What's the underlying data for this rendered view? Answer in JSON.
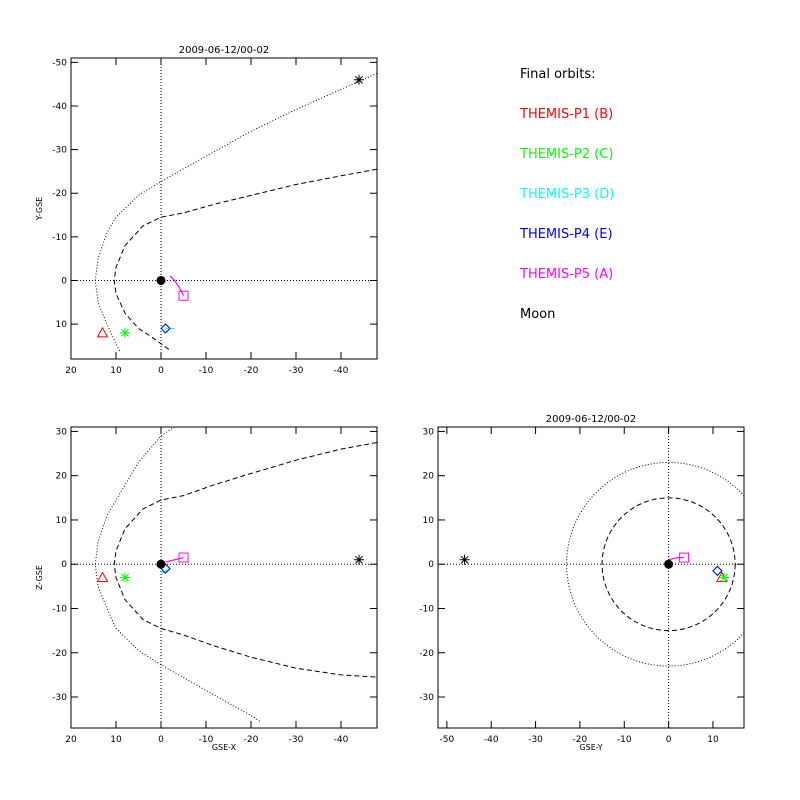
{
  "legend": {
    "title": "Final orbits:",
    "items": [
      {
        "label": "THEMIS-P1 (B)",
        "color": "#ff0000"
      },
      {
        "label": "THEMIS-P2 (C)",
        "color": "#00ff00"
      },
      {
        "label": "THEMIS-P3 (D)",
        "color": "#00ffff"
      },
      {
        "label": "THEMIS-P4 (E)",
        "color": "#0000ff"
      },
      {
        "label": "THEMIS-P5 (A)",
        "color": "#ff00ff"
      },
      {
        "label": "Moon",
        "color": "#000000"
      }
    ]
  },
  "chart_data": [
    {
      "type": "scatter",
      "title": "2009-06-12/00-02",
      "xlabel": "",
      "ylabel": "Y-GSE",
      "xlim": [
        20,
        -48
      ],
      "ylim": [
        18,
        -51
      ],
      "xticks": [
        20,
        10,
        0,
        -10,
        -20,
        -30,
        -40
      ],
      "yticks": [
        -50,
        -40,
        -30,
        -20,
        -10,
        0,
        10
      ],
      "grid": false,
      "reference_lines": {
        "x": 0,
        "y": 0
      },
      "curves": [
        {
          "name": "",
          "style": "dotted",
          "points": [
            [
              -48,
              -47.5
            ],
            [
              -44,
              -45.6
            ],
            [
              -40,
              -43.8
            ],
            [
              -30,
              -39.2
            ],
            [
              -20,
              -34.2
            ],
            [
              -10,
              -28.5
            ],
            [
              0,
              -22.7
            ],
            [
              5,
              -19.5
            ],
            [
              10,
              -14.5
            ],
            [
              12,
              -11
            ],
            [
              14,
              -5
            ],
            [
              14.6,
              0
            ],
            [
              14,
              5
            ],
            [
              12,
              10
            ],
            [
              10,
              14.5
            ],
            [
              9,
              16.5
            ]
          ]
        },
        {
          "name": "",
          "style": "dashed",
          "points": [
            [
              -48,
              -25.5
            ],
            [
              -40,
              -24
            ],
            [
              -30,
              -22
            ],
            [
              -20,
              -19.5
            ],
            [
              -12,
              -17.5
            ],
            [
              -5,
              -15.5
            ],
            [
              0,
              -14.5
            ],
            [
              4,
              -12.5
            ],
            [
              8,
              -8
            ],
            [
              10,
              -3
            ],
            [
              10.4,
              0
            ],
            [
              10,
              3
            ],
            [
              8,
              7.5
            ],
            [
              5,
              11
            ],
            [
              2,
              13
            ],
            [
              0,
              14.5
            ],
            [
              -2,
              16
            ]
          ]
        }
      ],
      "markers": [
        {
          "name": "Moon",
          "symbol": "asterisk",
          "color": "#000000",
          "x": -44,
          "y": -46
        },
        {
          "name": "THEMIS-P1 (B)",
          "symbol": "triangle",
          "color": "#ff0000",
          "x": 13,
          "y": 12
        },
        {
          "name": "THEMIS-P2 (C)",
          "symbol": "asterisk",
          "color": "#00ff00",
          "x": 8,
          "y": 12
        },
        {
          "name": "THEMIS-P3 (D)",
          "symbol": "diamond",
          "color": "#00ffff",
          "x": -1,
          "y": 11
        },
        {
          "name": "THEMIS-P4 (E)",
          "symbol": "diamond",
          "color": "#0000ff",
          "x": -1,
          "y": 11
        },
        {
          "name": "THEMIS-P5 (A)",
          "symbol": "square",
          "color": "#ff00ff",
          "x": -5,
          "y": 3.5
        },
        {
          "name": "Earth",
          "symbol": "dot",
          "color": "#000000",
          "x": 0,
          "y": 0
        }
      ],
      "tracks": [
        {
          "name": "THEMIS-P5 (A)",
          "color": "#ff00ff",
          "points": [
            [
              -2,
              -1
            ],
            [
              -3,
              0
            ],
            [
              -4,
              1.5
            ],
            [
              -5,
              3.5
            ]
          ]
        },
        {
          "name": "THEMIS-P3 (D)",
          "color": "#00ffff",
          "points": [
            [
              -1,
              11
            ],
            [
              -2,
              11
            ],
            [
              -3,
              11
            ]
          ]
        }
      ]
    },
    {
      "type": "scatter",
      "title": "",
      "xlabel": "GSE-X",
      "ylabel": "Z-GSE",
      "xlim": [
        20,
        -48
      ],
      "ylim": [
        -37,
        31
      ],
      "xticks": [
        20,
        10,
        0,
        -10,
        -20,
        -30,
        -40
      ],
      "yticks": [
        -30,
        -20,
        -10,
        0,
        10,
        20,
        30
      ],
      "grid": false,
      "reference_lines": {
        "x": 0,
        "y": 0
      },
      "curves": [
        {
          "name": "",
          "style": "dotted",
          "points": [
            [
              -3,
              31
            ],
            [
              0,
              29
            ],
            [
              5,
              23
            ],
            [
              10,
              14.5
            ],
            [
              12,
              11
            ],
            [
              14,
              5
            ],
            [
              14.6,
              0
            ],
            [
              14,
              -5
            ],
            [
              12,
              -10
            ],
            [
              10,
              -14.5
            ],
            [
              5,
              -19.5
            ],
            [
              0,
              -22.7
            ],
            [
              -10,
              -28.5
            ],
            [
              -20,
              -34.2
            ],
            [
              -22,
              -35.5
            ]
          ]
        },
        {
          "name": "",
          "style": "dashed",
          "points": [
            [
              -48,
              27.5
            ],
            [
              -40,
              26
            ],
            [
              -30,
              23.5
            ],
            [
              -20,
              20.5
            ],
            [
              -12,
              18
            ],
            [
              -5,
              15.5
            ],
            [
              0,
              14.5
            ],
            [
              4,
              12.5
            ],
            [
              8,
              8
            ],
            [
              10,
              3
            ],
            [
              10.4,
              0
            ],
            [
              10,
              -3
            ],
            [
              8,
              -8
            ],
            [
              4,
              -12.5
            ],
            [
              0,
              -14.5
            ],
            [
              -5,
              -16
            ],
            [
              -12,
              -18.5
            ],
            [
              -20,
              -21
            ],
            [
              -30,
              -23.5
            ],
            [
              -40,
              -25
            ],
            [
              -48,
              -25.5
            ]
          ]
        }
      ],
      "markers": [
        {
          "name": "Moon",
          "symbol": "asterisk",
          "color": "#000000",
          "x": -44,
          "y": 1
        },
        {
          "name": "THEMIS-P1 (B)",
          "symbol": "triangle",
          "color": "#ff0000",
          "x": 13,
          "y": -3
        },
        {
          "name": "THEMIS-P2 (C)",
          "symbol": "asterisk",
          "color": "#00ff00",
          "x": 8,
          "y": -3
        },
        {
          "name": "THEMIS-P3 (D)",
          "symbol": "diamond",
          "color": "#00ffff",
          "x": -1,
          "y": -1
        },
        {
          "name": "THEMIS-P4 (E)",
          "symbol": "diamond",
          "color": "#0000ff",
          "x": -1,
          "y": -1
        },
        {
          "name": "THEMIS-P5 (A)",
          "symbol": "square",
          "color": "#ff00ff",
          "x": -5,
          "y": 1.5
        },
        {
          "name": "Earth",
          "symbol": "dot",
          "color": "#000000",
          "x": 0,
          "y": 0
        }
      ],
      "tracks": [
        {
          "name": "THEMIS-P5 (A)",
          "color": "#ff00ff",
          "points": [
            [
              -1,
              0.5
            ],
            [
              -3,
              1
            ],
            [
              -5,
              1.5
            ]
          ]
        },
        {
          "name": "THEMIS-P3 (D)",
          "color": "#00ffff",
          "points": [
            [
              0,
              -2
            ],
            [
              -1,
              -1.5
            ],
            [
              -2,
              -1
            ]
          ]
        }
      ]
    },
    {
      "type": "scatter",
      "title": "2009-06-12/00-02",
      "xlabel": "GSE-Y",
      "ylabel": "",
      "xlim": [
        -52,
        17
      ],
      "ylim": [
        -37,
        31
      ],
      "xticks": [
        -50,
        -40,
        -30,
        -20,
        -10,
        0,
        10
      ],
      "yticks": [
        -30,
        -20,
        -10,
        0,
        10,
        20,
        30
      ],
      "grid": false,
      "reference_lines": {
        "x": 0,
        "y": 0
      },
      "circles": [
        {
          "name": "",
          "style": "dotted",
          "cx": 0,
          "cy": 0,
          "r": 23
        },
        {
          "name": "",
          "style": "dashed",
          "cx": 0,
          "cy": 0,
          "r": 15
        }
      ],
      "markers": [
        {
          "name": "Moon",
          "symbol": "asterisk",
          "color": "#000000",
          "x": -46,
          "y": 1
        },
        {
          "name": "THEMIS-P1 (B)",
          "symbol": "triangle",
          "color": "#ff0000",
          "x": 12,
          "y": -3
        },
        {
          "name": "THEMIS-P2 (C)",
          "symbol": "asterisk",
          "color": "#00ff00",
          "x": 12.5,
          "y": -3
        },
        {
          "name": "THEMIS-P3 (D)",
          "symbol": "diamond",
          "color": "#00ffff",
          "x": 11,
          "y": -1.5
        },
        {
          "name": "THEMIS-P4 (E)",
          "symbol": "diamond",
          "color": "#0000ff",
          "x": 11,
          "y": -1.5
        },
        {
          "name": "THEMIS-P5 (A)",
          "symbol": "square",
          "color": "#ff00ff",
          "x": 3.5,
          "y": 1.5
        },
        {
          "name": "Earth",
          "symbol": "dot",
          "color": "#000000",
          "x": 0,
          "y": 0
        }
      ],
      "tracks": [
        {
          "name": "THEMIS-P5 (A)",
          "color": "#ff00ff",
          "points": [
            [
              0,
              1
            ],
            [
              2,
              1.5
            ],
            [
              3.5,
              1.5
            ]
          ]
        }
      ]
    }
  ]
}
